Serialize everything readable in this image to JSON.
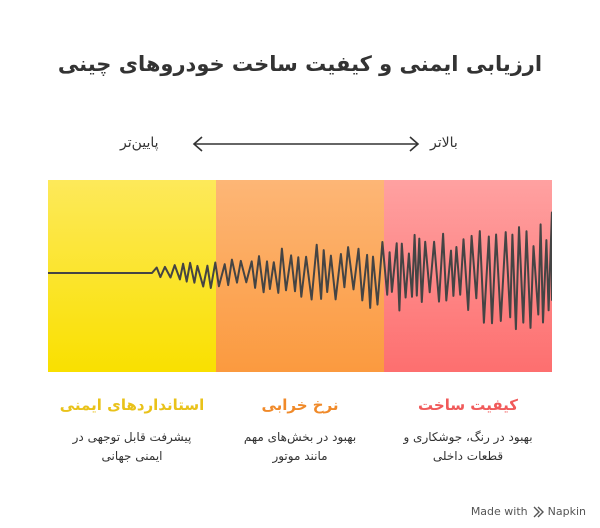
{
  "title": "ارزیابی ایمنی و کیفیت ساخت خودروهای چینی",
  "scale": {
    "left_label": "پایین‌تر",
    "right_label": "بالاتر"
  },
  "columns": [
    {
      "heading": "استانداردهای ایمنی",
      "description": "پیشرفت قابل توجهی در ایمنی جهانی",
      "color": "#f9e000"
    },
    {
      "heading": "نرخ خرابی",
      "description": "بهبود در بخش‌های مهم مانند موتور",
      "color": "#fb9a3f"
    },
    {
      "heading": "کیفیت ساخت",
      "description": "بهبود در رنگ، جوشکاری و قطعات داخلی",
      "color": "#fd6f6f"
    }
  ],
  "footer": {
    "made_with": "Made with",
    "brand": "Napkin"
  }
}
